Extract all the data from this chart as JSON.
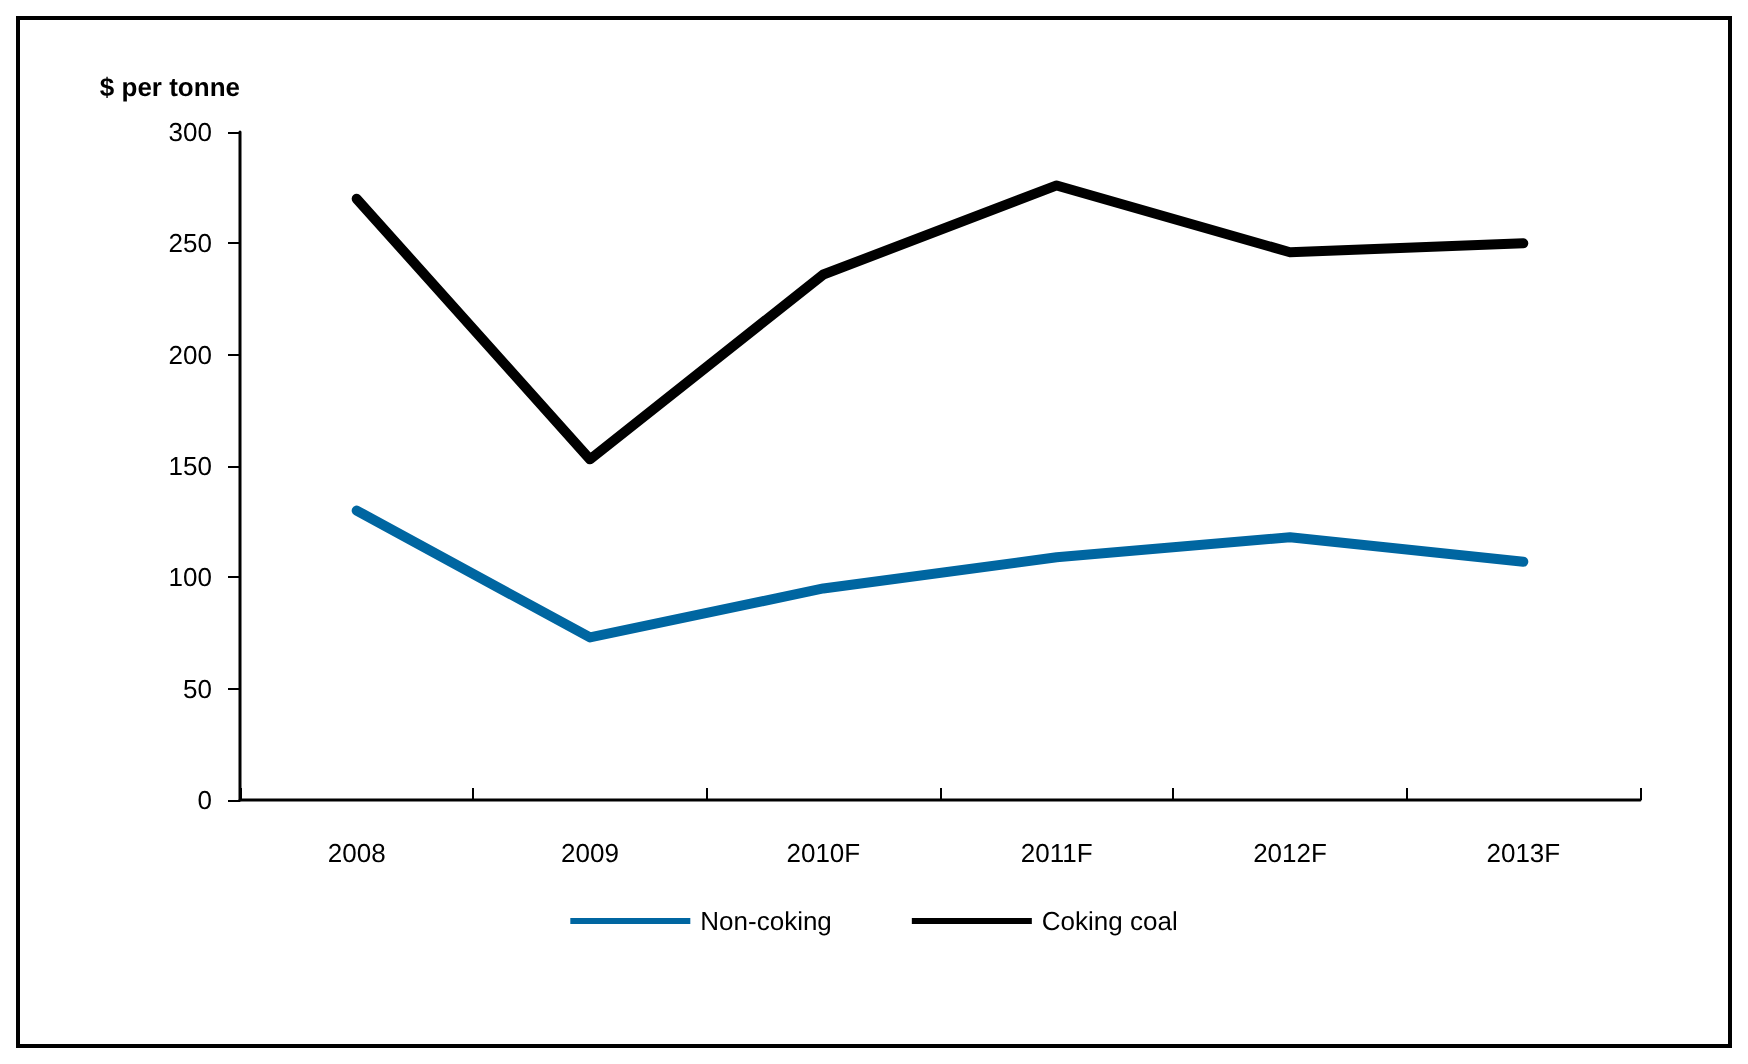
{
  "chart_data": {
    "type": "line",
    "ylabel": "$ per tonne",
    "categories": [
      "2008",
      "2009",
      "2010F",
      "2011F",
      "2012F",
      "2013F"
    ],
    "series": [
      {
        "name": "Non-coking",
        "color": "#0066a1",
        "values": [
          130,
          73,
          95,
          109,
          118,
          107
        ]
      },
      {
        "name": "Coking coal",
        "color": "#000000",
        "values": [
          270,
          153,
          236,
          276,
          246,
          250
        ]
      }
    ],
    "ylim": [
      0,
      300
    ],
    "yticks": [
      0,
      50,
      100,
      150,
      200,
      250,
      300
    ],
    "grid": false,
    "legend": "bottom",
    "marker": "none",
    "line_style": "solid"
  }
}
